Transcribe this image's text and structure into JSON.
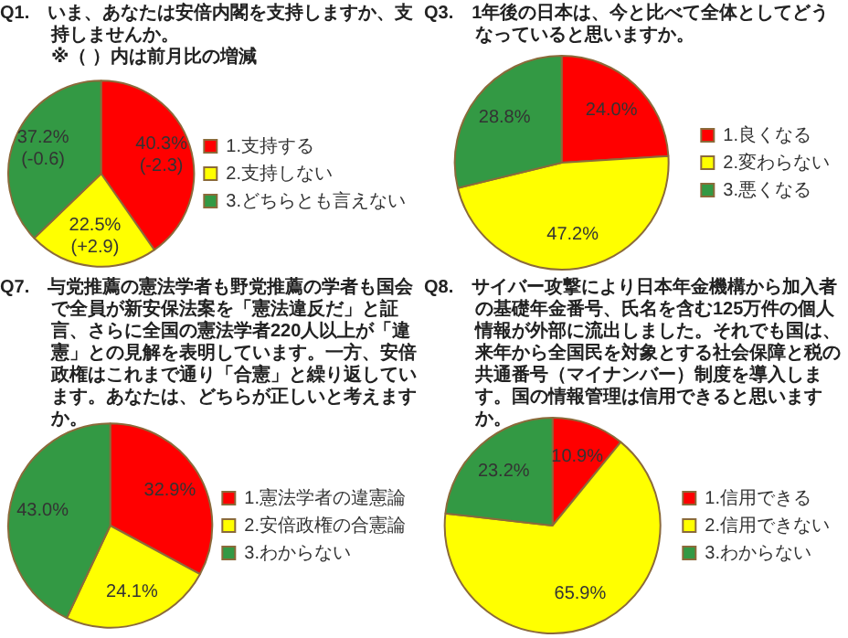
{
  "chart_data": [
    {
      "type": "pie",
      "title": "Q1.　いま、あなたは安倍内閣を支持しますか、支持しませんか。",
      "subtitle": "※（ ）内は前月比の増減",
      "categories": [
        "1.支持する",
        "2.支持しない",
        "3.どちらとも言えない"
      ],
      "values": [
        40.3,
        22.5,
        37.2
      ],
      "colors": [
        "#ff0000",
        "#ffff00",
        "#339944"
      ],
      "value_labels": [
        "40.3%\n(-2.3)",
        "22.5%\n(+2.9)",
        "37.2%\n(-0.6)"
      ],
      "legend": "right"
    },
    {
      "type": "pie",
      "title": "Q3.　1年後の日本は、今と比べて全体としてどうなっていると思いますか。",
      "categories": [
        "1.良くなる",
        "2.変わらない",
        "3.悪くなる"
      ],
      "values": [
        24.0,
        47.2,
        28.8
      ],
      "colors": [
        "#ff0000",
        "#ffff00",
        "#339944"
      ],
      "value_labels": [
        "24.0%",
        "47.2%",
        "28.8%"
      ],
      "legend": "right"
    },
    {
      "type": "pie",
      "title": "Q7.　与党推薦の憲法学者も野党推薦の学者も国会で全員が新安保法案を「憲法違反だ」と証言、さらに全国の憲法学者220人以上が「違憲」との見解を表明しています。一方、安倍政権はこれまで通り「合憲」と繰り返しています。あなたは、どちらが正しいと考えますか。",
      "categories": [
        "1.憲法学者の違憲論",
        "2.安倍政権の合憲論",
        "3.わからない"
      ],
      "values": [
        32.9,
        24.1,
        43.0
      ],
      "colors": [
        "#ff0000",
        "#ffff00",
        "#339944"
      ],
      "value_labels": [
        "32.9%",
        "24.1%",
        "43.0%"
      ],
      "legend": "right"
    },
    {
      "type": "pie",
      "title": "Q8.　サイバー攻撃により日本年金機構から加入者の基礎年金番号、氏名を含む125万件の個人情報が外部に流出しました。それでも国は、来年から全国民を対象とする社会保障と税の共通番号（マイナンバー）制度を導入します。国の情報管理は信用できると思いますか。",
      "categories": [
        "1.信用できる",
        "2.信用できない",
        "3.わからない"
      ],
      "values": [
        10.9,
        65.9,
        23.2
      ],
      "colors": [
        "#ff0000",
        "#ffff00",
        "#339944"
      ],
      "value_labels": [
        "10.9%",
        "65.9%",
        "23.2%"
      ],
      "legend": "right"
    }
  ]
}
